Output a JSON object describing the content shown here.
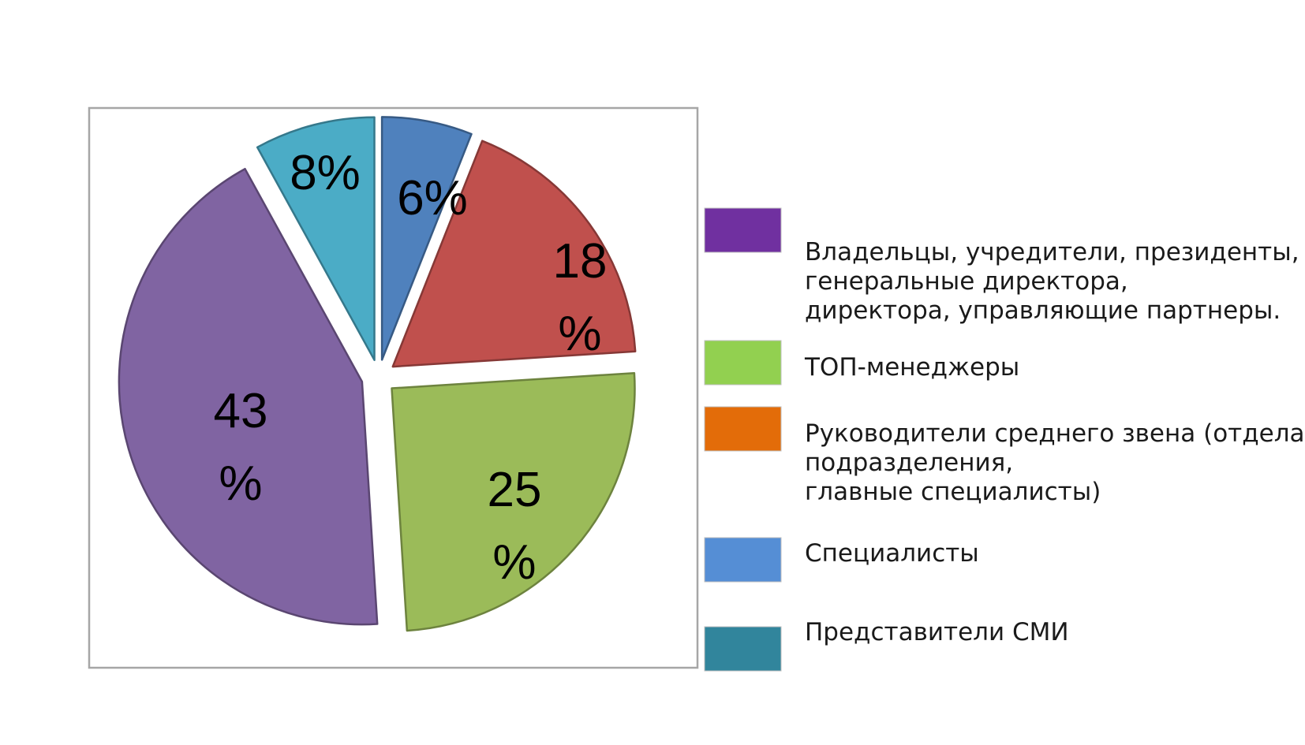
{
  "chart_data": {
    "type": "pie",
    "exploded": true,
    "slices": [
      {
        "label_lines": [
          "6%"
        ],
        "value": 6,
        "color": "#4f81bd"
      },
      {
        "label_lines": [
          "18",
          "%"
        ],
        "value": 18,
        "color": "#c0504d"
      },
      {
        "label_lines": [
          "25",
          "%"
        ],
        "value": 25,
        "color": "#9bbb59"
      },
      {
        "label_lines": [
          "43",
          "%"
        ],
        "value": 43,
        "color": "#8064a2"
      },
      {
        "label_lines": [
          "8%"
        ],
        "value": 8,
        "color": "#4bacc6"
      }
    ],
    "legend": [
      {
        "lines": [
          "Владельцы, учредители, президенты,",
          "генеральные директора,",
          "директора, управляющие партнеры."
        ],
        "color": "#7030a0"
      },
      {
        "lines": [
          "ТОП-менеджеры"
        ],
        "color": "#92d050"
      },
      {
        "lines": [
          "Руководители среднего звена (отдела,",
          "подразделения,",
          "главные специалисты)"
        ],
        "color": "#e36c09"
      },
      {
        "lines": [
          "Специалисты"
        ],
        "color": "#558ed5"
      },
      {
        "lines": [
          "Представители СМИ"
        ],
        "color": "#31859c"
      }
    ],
    "legend_position": "right"
  }
}
